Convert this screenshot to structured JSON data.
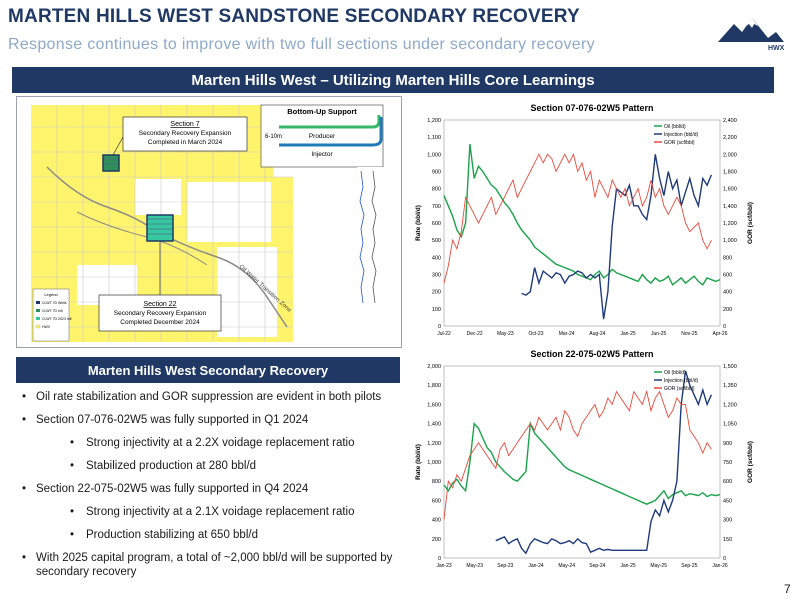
{
  "header": {
    "title": "MARTEN HILLS WEST SANDSTONE SECONDARY RECOVERY",
    "subtitle": "Response continues to improve with two full sections under secondary recovery",
    "logo_text": "HWX"
  },
  "banner": "Marten Hills West – Utilizing Marten Hills Core Learnings",
  "map": {
    "section7": {
      "title": "Section 7",
      "line1": "Secondary Recovery Expansion",
      "line2": "Completed in March 2024"
    },
    "section22": {
      "title": "Section 22",
      "line1": "Secondary Recovery Expansion",
      "line2": "Completed December 2024"
    },
    "inset": {
      "title": "Bottom-Up Support",
      "producer": "Producer",
      "injector": "Injector",
      "spacing": "6-10m"
    },
    "pipeline_label": "Oil Water Transition Zone",
    "legend_title": "Legend",
    "legend_items": [
      "CLWT 7D Wells",
      "CLWT 7D Infl",
      "CLWT 7D 2023 Infl",
      "HWX"
    ]
  },
  "side_banner": "Marten Hills West Secondary Recovery",
  "bullets": [
    {
      "text": "Oil rate stabilization and GOR suppression are evident in both pilots",
      "level": 0
    },
    {
      "text": "Section 07-076-02W5 was fully supported in Q1 2024",
      "level": 0
    },
    {
      "text": "Strong injectivity at a 2.2X voidage replacement ratio",
      "level": 1
    },
    {
      "text": "Stabilized production at 280 bbl/d",
      "level": 1
    },
    {
      "text": "Section 22-075-02W5 was fully supported in Q4 2024",
      "level": 0
    },
    {
      "text": "Strong injectivity at a 2.1X voidage replacement ratio",
      "level": 1
    },
    {
      "text": "Production stabilizing at 650 bbl/d",
      "level": 1
    },
    {
      "text": "With 2025 capital program, a total of ~2,000 bbl/d will be supported by secondary recovery",
      "level": 0
    }
  ],
  "page_number": "7",
  "chart_data": [
    {
      "type": "line",
      "title": "Section 07-076-02W5 Pattern",
      "ylabel": "Rate (bbl/d)",
      "y2label": "GOR (scf/bbl)",
      "ylim": [
        0,
        1200
      ],
      "y2lim": [
        0,
        2400
      ],
      "yticks": [
        "0",
        "100",
        "200",
        "300",
        "400",
        "500",
        "600",
        "700",
        "800",
        "900",
        "1,000",
        "1,100",
        "1,200"
      ],
      "y2ticks": [
        "0",
        "200",
        "400",
        "600",
        "800",
        "1,000",
        "1,200",
        "1,400",
        "1,600",
        "1,800",
        "2,000",
        "2,200",
        "2,400"
      ],
      "xticks": [
        "Jul-22",
        "Dec-22",
        "May-23",
        "Oct-23",
        "Mar-24",
        "Aug-24",
        "Jan-25",
        "Jun-25",
        "Nov-25",
        "Apr-26"
      ],
      "legend_position": "top-right",
      "series": [
        {
          "name": "Oil (bbl/d)",
          "axis": "left",
          "color": "#1aa34a",
          "x": [
            0,
            0.5,
            1,
            1.5,
            2,
            2.5,
            3,
            3.5,
            4,
            4.5,
            5,
            5.5,
            6,
            6.5,
            7,
            7.5,
            8,
            8.5,
            9,
            9.5,
            10,
            10.5,
            11,
            11.5,
            12,
            12.5,
            13,
            13.5,
            14,
            14.5,
            15,
            15.5,
            16,
            16.5,
            17,
            17.5,
            18,
            18.5,
            19,
            19.5,
            20,
            20.5,
            21,
            21.5,
            22,
            22.5,
            23,
            23.5,
            24,
            24.5,
            25,
            25.5,
            26,
            26.5,
            27,
            27.5,
            28,
            28.5,
            29,
            29.5,
            30,
            30.5,
            31,
            31.5,
            32
          ],
          "y": [
            760,
            700,
            640,
            560,
            520,
            600,
            1060,
            860,
            930,
            900,
            860,
            820,
            800,
            760,
            720,
            690,
            650,
            600,
            560,
            530,
            500,
            460,
            440,
            420,
            400,
            380,
            360,
            350,
            340,
            330,
            320,
            300,
            290,
            280,
            270,
            300,
            320,
            280,
            300,
            330,
            310,
            300,
            290,
            280,
            270,
            260,
            300,
            270,
            250,
            280,
            260,
            270,
            290,
            240,
            260,
            280,
            250,
            270,
            290,
            260,
            240,
            280,
            270,
            260,
            270
          ]
        },
        {
          "name": "Injection (bbl/d)",
          "axis": "left",
          "color": "#1f3a7a",
          "x": [
            9,
            9.5,
            10,
            10.5,
            11,
            11.5,
            12,
            12.5,
            13,
            13.5,
            14,
            14.5,
            15,
            15.5,
            16,
            16.5,
            17,
            17.5,
            18,
            18.5,
            19,
            19.5,
            20,
            20.5,
            21,
            21.5,
            22,
            22.5,
            23,
            23.5,
            24,
            24.5,
            25,
            25.5,
            26,
            26.5,
            27,
            27.5,
            28,
            28.5,
            29,
            29.5,
            30,
            30.5,
            31
          ],
          "y": [
            190,
            180,
            200,
            340,
            250,
            320,
            300,
            280,
            310,
            300,
            250,
            290,
            300,
            320,
            310,
            280,
            300,
            280,
            300,
            40,
            200,
            580,
            800,
            780,
            760,
            820,
            700,
            700,
            650,
            620,
            760,
            1000,
            860,
            760,
            900,
            800,
            850,
            700,
            780,
            860,
            760,
            700,
            860,
            820,
            880
          ]
        },
        {
          "name": "GOR (scf/bbl)",
          "axis": "right",
          "color": "#e8493c",
          "x": [
            0,
            0.5,
            1,
            1.5,
            2,
            2.5,
            3,
            3.5,
            4,
            4.5,
            5,
            5.5,
            6,
            6.5,
            7,
            7.5,
            8,
            8.5,
            9,
            9.5,
            10,
            10.5,
            11,
            11.5,
            12,
            12.5,
            13,
            13.5,
            14,
            14.5,
            15,
            15.5,
            16,
            16.5,
            17,
            17.5,
            18,
            18.5,
            19,
            19.5,
            20,
            20.5,
            21,
            21.5,
            22,
            22.5,
            23,
            23.5,
            24,
            24.5,
            25,
            25.5,
            26,
            26.5,
            27,
            27.5,
            28,
            28.5,
            29,
            29.5,
            30,
            30.5,
            31
          ],
          "y": [
            500,
            700,
            1000,
            900,
            1100,
            1500,
            1400,
            1300,
            1200,
            1300,
            1400,
            1500,
            1300,
            1400,
            1500,
            1600,
            1700,
            1500,
            1600,
            1700,
            1800,
            1900,
            2000,
            1900,
            2000,
            1950,
            1800,
            1900,
            2000,
            1900,
            2000,
            1800,
            1900,
            1700,
            1800,
            1500,
            1700,
            1600,
            1500,
            1700,
            1600,
            1500,
            1600,
            1400,
            1500,
            1600,
            1400,
            1500,
            1700,
            1500,
            1600,
            1400,
            1300,
            1400,
            1500,
            1400,
            1200,
            1100,
            1150,
            1200,
            1000,
            900,
            1000
          ]
        }
      ]
    },
    {
      "type": "line",
      "title": "Section 22-075-02W5 Pattern",
      "ylabel": "Rate (bbl/d)",
      "y2label": "GOR (scf/bbl)",
      "ylim": [
        0,
        2000
      ],
      "y2lim": [
        0,
        1500
      ],
      "yticks": [
        "0",
        "200",
        "400",
        "600",
        "800",
        "1,000",
        "1,200",
        "1,400",
        "1,600",
        "1,800",
        "2,000"
      ],
      "y2ticks": [
        "0",
        "150",
        "300",
        "450",
        "600",
        "750",
        "900",
        "1,050",
        "1,200",
        "1,350",
        "1,500"
      ],
      "xticks": [
        "Jan-23",
        "May-23",
        "Sep-23",
        "Jan-24",
        "May-24",
        "Sep-24",
        "Jan-25",
        "May-25",
        "Sep-25",
        "Jan-26"
      ],
      "legend_position": "top-right",
      "series": [
        {
          "name": "Oil (bbl/d)",
          "axis": "left",
          "color": "#1aa34a",
          "x": [
            0,
            0.5,
            1,
            1.5,
            2,
            2.5,
            3,
            3.5,
            4,
            4.5,
            5,
            5.5,
            6,
            6.5,
            7,
            7.5,
            8,
            8.5,
            9,
            9.5,
            10,
            10.5,
            11,
            11.5,
            12,
            12.5,
            13,
            13.5,
            14,
            14.5,
            15,
            15.5,
            16,
            16.5,
            17,
            17.5,
            18,
            18.5,
            19,
            19.5,
            20,
            20.5,
            21,
            21.5,
            22,
            22.5,
            23,
            23.5,
            24,
            24.5,
            25,
            25.5,
            26,
            26.5,
            27,
            27.5,
            28,
            28.5,
            29,
            29.5,
            30,
            30.5,
            31,
            31.5,
            32
          ],
          "y": [
            760,
            700,
            780,
            820,
            750,
            700,
            1000,
            1400,
            1350,
            1250,
            1150,
            1100,
            1000,
            950,
            900,
            860,
            820,
            800,
            850,
            900,
            1400,
            1300,
            1250,
            1200,
            1150,
            1100,
            1050,
            1000,
            950,
            920,
            900,
            880,
            860,
            840,
            820,
            800,
            780,
            760,
            740,
            720,
            700,
            680,
            660,
            640,
            620,
            600,
            580,
            560,
            580,
            600,
            650,
            700,
            620,
            660,
            680,
            700,
            650,
            670,
            660,
            650,
            680,
            640,
            660,
            650,
            660
          ]
        },
        {
          "name": "Injection (bbl/d)",
          "axis": "left",
          "color": "#1f3a7a",
          "x": [
            6,
            6.5,
            7,
            7.5,
            8,
            8.5,
            9,
            9.5,
            10,
            10.5,
            11,
            11.5,
            12,
            12.5,
            13,
            13.5,
            14,
            14.5,
            15,
            15.5,
            16,
            16.5,
            17,
            17.5,
            18,
            18.5,
            19,
            19.5,
            20,
            20.5,
            21,
            21.5,
            22,
            22.5,
            23,
            23.5,
            24,
            24.5,
            25,
            25.5,
            26,
            26.5,
            27,
            27.5,
            28,
            28.5,
            29,
            29.5,
            30,
            30.5,
            31
          ],
          "y": [
            180,
            200,
            220,
            150,
            180,
            200,
            100,
            50,
            150,
            200,
            180,
            160,
            150,
            200,
            180,
            150,
            160,
            180,
            150,
            200,
            160,
            150,
            60,
            80,
            100,
            80,
            90,
            80,
            80,
            80,
            80,
            80,
            80,
            80,
            80,
            80,
            380,
            500,
            440,
            600,
            480,
            600,
            800,
            1600,
            1950,
            1800,
            1700,
            1600,
            1750,
            1600,
            1700
          ]
        },
        {
          "name": "GOR (scf/bbl)",
          "axis": "right",
          "color": "#e8493c",
          "x": [
            0,
            0.5,
            1,
            1.5,
            2,
            2.5,
            3,
            3.5,
            4,
            4.5,
            5,
            5.5,
            6,
            6.5,
            7,
            7.5,
            8,
            8.5,
            9,
            9.5,
            10,
            10.5,
            11,
            11.5,
            12,
            12.5,
            13,
            13.5,
            14,
            14.5,
            15,
            15.5,
            16,
            16.5,
            17,
            17.5,
            18,
            18.5,
            19,
            19.5,
            20,
            20.5,
            21,
            21.5,
            22,
            22.5,
            23,
            23.5,
            24,
            24.5,
            25,
            25.5,
            26,
            26.5,
            27,
            27.5,
            28,
            28.5,
            29,
            29.5,
            30,
            30.5,
            31
          ],
          "y": [
            300,
            600,
            550,
            650,
            600,
            700,
            800,
            850,
            900,
            850,
            800,
            750,
            700,
            850,
            900,
            800,
            850,
            900,
            950,
            1000,
            1050,
            1000,
            1100,
            1050,
            1000,
            1050,
            1100,
            1000,
            1150,
            1100,
            1000,
            950,
            1050,
            1100,
            1150,
            1200,
            1100,
            1150,
            1250,
            1200,
            1300,
            1250,
            1200,
            1150,
            1300,
            1250,
            1200,
            1300,
            1150,
            1250,
            1300,
            1200,
            1100,
            1150,
            1250,
            1200,
            1200,
            1000,
            950,
            900,
            820,
            900,
            850
          ]
        }
      ]
    }
  ]
}
